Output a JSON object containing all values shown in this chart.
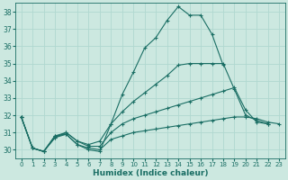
{
  "xlabel": "Humidex (Indice chaleur)",
  "ylabel": "",
  "bg_color": "#cce8e0",
  "grid_color": "#b0d8d0",
  "line_color": "#1a6e64",
  "xlim": [
    -0.5,
    23.5
  ],
  "ylim": [
    29.5,
    38.5
  ],
  "xticks": [
    0,
    1,
    2,
    3,
    4,
    5,
    6,
    7,
    8,
    9,
    10,
    11,
    12,
    13,
    14,
    15,
    16,
    17,
    18,
    19,
    20,
    21,
    22,
    23
  ],
  "yticks": [
    30,
    31,
    32,
    33,
    34,
    35,
    36,
    37,
    38
  ],
  "series": [
    [
      31.9,
      30.1,
      29.9,
      30.8,
      30.9,
      30.3,
      30.0,
      29.9,
      31.5,
      33.2,
      34.5,
      35.9,
      36.5,
      37.5,
      38.3,
      37.8,
      37.8,
      36.7,
      34.9,
      null,
      null,
      null,
      null,
      null
    ],
    [
      31.9,
      30.1,
      29.9,
      30.8,
      31.0,
      30.5,
      30.3,
      30.5,
      31.5,
      32.2,
      32.8,
      33.3,
      33.8,
      34.3,
      34.9,
      35.0,
      35.0,
      35.0,
      35.0,
      33.5,
      32.0,
      31.7,
      31.5,
      null
    ],
    [
      31.9,
      30.1,
      29.9,
      30.7,
      31.0,
      30.5,
      30.2,
      30.2,
      31.0,
      31.5,
      31.8,
      32.0,
      32.2,
      32.4,
      32.6,
      32.8,
      33.0,
      33.2,
      33.4,
      33.6,
      32.3,
      31.6,
      31.5,
      null
    ],
    [
      31.9,
      30.1,
      29.9,
      30.7,
      30.9,
      30.3,
      30.1,
      30.0,
      30.6,
      30.8,
      31.0,
      31.1,
      31.2,
      31.3,
      31.4,
      31.5,
      31.6,
      31.7,
      31.8,
      31.9,
      31.9,
      31.8,
      31.6,
      31.5
    ]
  ]
}
